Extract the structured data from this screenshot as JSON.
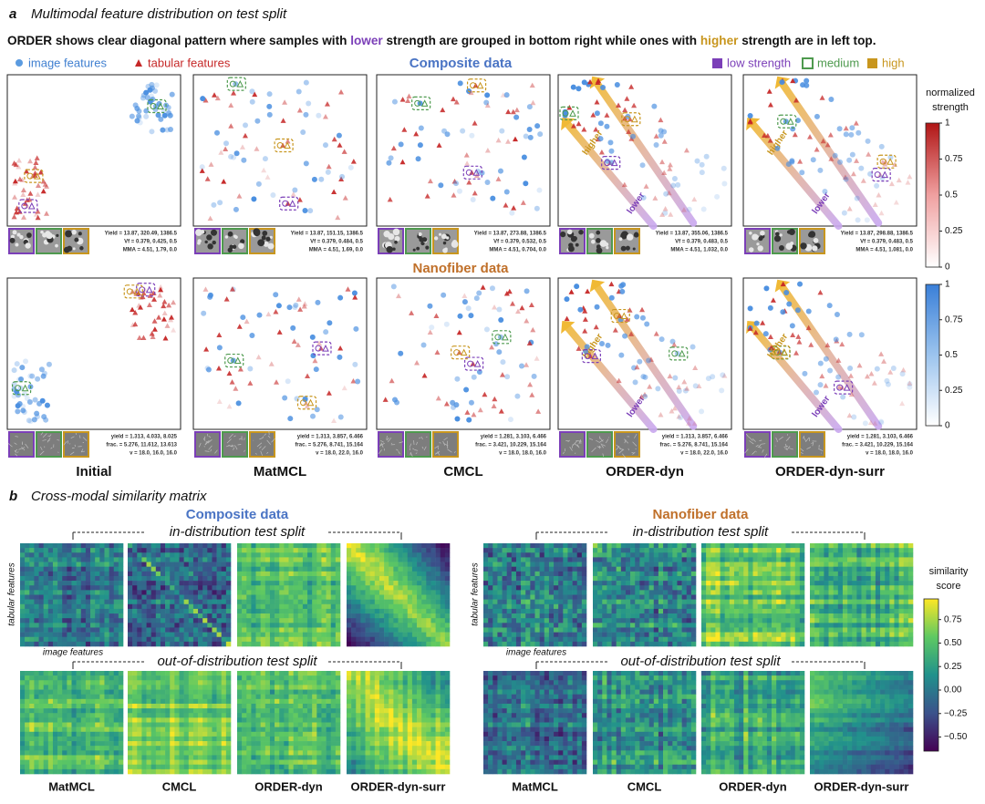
{
  "panel_a": {
    "label": "a",
    "title": "Multimodal feature distribution on test split",
    "subtitle": [
      "ORDER shows clear diagonal pattern where samples with ",
      "lower",
      " strength are grouped in bottom right while ones with ",
      "higher",
      " strength are in left top."
    ],
    "legend": {
      "image_features": "image features",
      "tabular_features": "tabular features",
      "strength": [
        "low strength",
        "medium",
        "high"
      ]
    },
    "datasets": [
      {
        "name": "Composite data",
        "annotations": [
          [
            "Yield = 13.87, 320.49, 1386.5",
            "Vf = 0.379, 0.425, 0.5",
            "MMA = 4.51, 1.79, 0.0"
          ],
          [
            "Yield = 13.87, 151.15, 1386.5",
            "Vf = 0.379, 0.484, 0.5",
            "MMA = 4.51, 1.69, 0.0"
          ],
          [
            "Yield = 13.87, 273.88, 1386.5",
            "Vf = 0.379, 0.532, 0.5",
            "MMA = 4.51, 0.704, 0.0"
          ],
          [
            "Yield = 13.87, 355.06, 1386.5",
            "Vf = 0.379, 0.483, 0.5",
            "MMA = 4.51, 1.032, 0.0"
          ],
          [
            "Yield = 13.87, 298.88, 1386.5",
            "Vf = 0.379, 0.483, 0.5",
            "MMA = 4.51, 1.081, 0.0"
          ]
        ]
      },
      {
        "name": "Nanofiber data",
        "annotations": [
          [
            "yield = 1.313, 4.033, 8.025",
            "frac. = 5.276, 11.612, 13.613",
            "v = 18.0, 16.0, 16.0"
          ],
          [
            "yield = 1.313, 3.857, 6.466",
            "frac. = 5.276, 8.741, 15.164",
            "v = 18.0, 22.0, 16.0"
          ],
          [
            "yield = 1.281, 3.103, 6.466",
            "frac. = 3.421, 10.229, 15.164",
            "v = 18.0, 18.0, 16.0"
          ],
          [
            "yield = 1.313, 3.857, 6.466",
            "frac. = 5.276, 8.741, 15.164",
            "v = 18.0, 22.0, 16.0"
          ],
          [
            "yield = 1.281, 3.103, 6.466",
            "frac. = 3.421, 10.229, 15.164",
            "v = 18.0, 18.0, 16.0"
          ]
        ]
      }
    ],
    "methods": [
      "Initial",
      "MatMCL",
      "CMCL",
      "ORDER-dyn",
      "ORDER-dyn-surr"
    ],
    "arrow_labels": [
      "higher",
      "lower"
    ],
    "colorbar": {
      "title": [
        "normalized",
        "strength"
      ],
      "lim": [
        0,
        1
      ],
      "ticks": [
        1,
        0.75,
        0.5,
        0.25,
        0
      ]
    }
  },
  "panel_b": {
    "label": "b",
    "title": "Cross-modal similarity matrix",
    "datasets": [
      "Composite data",
      "Nanofiber data"
    ],
    "splits": [
      "in-distribution test split",
      "out-of-distribution test split"
    ],
    "axis_labels": {
      "y": "tabular features",
      "x": "image features"
    },
    "methods": [
      "MatMCL",
      "CMCL",
      "ORDER-dyn",
      "ORDER-dyn-surr"
    ],
    "colorbar": {
      "title": [
        "similarity",
        "score"
      ],
      "lim": [
        -0.65,
        0.97
      ],
      "ticks": [
        0.75,
        {
          "value": 0.5,
          "label": "0.50"
        },
        0.25,
        {
          "value": 0,
          "label": "0.00"
        },
        {
          "value": -0.25,
          "label": "−0.25"
        },
        {
          "value": -0.5,
          "label": "−0.50"
        }
      ]
    }
  }
}
